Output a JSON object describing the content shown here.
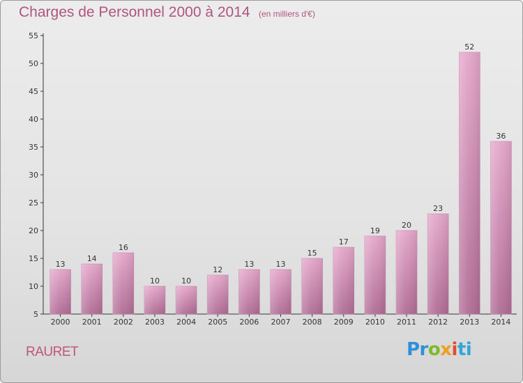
{
  "header": {
    "title": "Charges de Personnel 2000 à 2014",
    "subtitle": "(en milliers d'€)"
  },
  "footer": {
    "commune": "RAURET",
    "logo_text": "Proxiti"
  },
  "colors": {
    "bar_top": "#e4a6c9",
    "bar_bottom": "#b06c95",
    "title": "#b0557e",
    "axis": "#333333"
  },
  "chart_data": {
    "type": "bar",
    "title": "Charges de Personnel 2000 à 2014",
    "subtitle": "(en milliers d'€)",
    "xlabel": "",
    "ylabel": "",
    "categories": [
      "2000",
      "2001",
      "2002",
      "2003",
      "2004",
      "2005",
      "2006",
      "2007",
      "2008",
      "2009",
      "2010",
      "2011",
      "2012",
      "2013",
      "2014"
    ],
    "values": [
      13,
      14,
      16,
      10,
      10,
      12,
      13,
      13,
      15,
      17,
      19,
      20,
      23,
      52,
      36
    ],
    "ylim": [
      5,
      55
    ],
    "yticks": [
      5,
      10,
      15,
      20,
      25,
      30,
      35,
      40,
      45,
      50,
      55
    ],
    "grid": false,
    "data_labels": true,
    "legend": "none"
  }
}
